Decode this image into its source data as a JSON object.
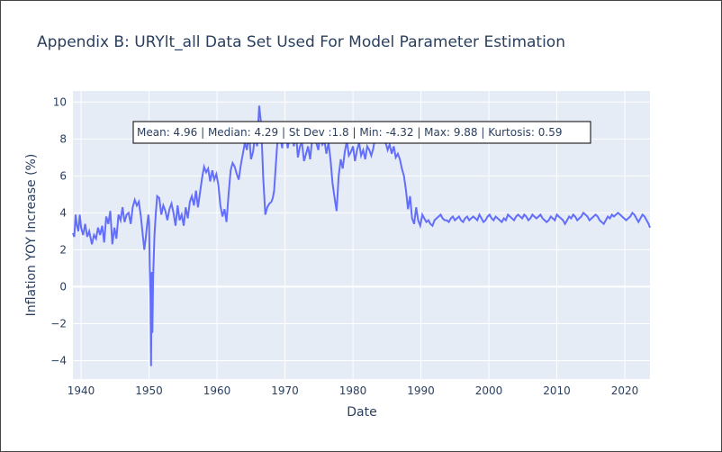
{
  "chart_data": {
    "type": "line",
    "title": "Appendix B: URYlt_all Data Set Used For Model Parameter Estimation",
    "xlabel": "Date",
    "ylabel": "Inflation YOY Increase (%)",
    "xlim": [
      1938.8,
      2023.7
    ],
    "ylim": [
      -5,
      10.6
    ],
    "x_ticks": [
      1940,
      1950,
      1960,
      1970,
      1980,
      1990,
      2000,
      2010,
      2020
    ],
    "y_ticks": [
      -4,
      -2,
      0,
      2,
      4,
      6,
      8,
      10
    ],
    "grid": true,
    "line_color": "#636efa",
    "plot_bgcolor": "#e5ecf6",
    "annotation": "Mean: 4.96 | Median: 4.29 | St Dev :1.8 | Min: -4.32 | Max: 9.88 | Kurtosis: 0.59",
    "series": [
      {
        "x": [
          1938.8,
          1939.0,
          1939.2,
          1939.4,
          1939.6,
          1939.8,
          1940.0,
          1940.3,
          1940.6,
          1940.9,
          1941.2,
          1941.6,
          1941.9,
          1942.2,
          1942.5,
          1942.8,
          1943.1,
          1943.4,
          1943.7,
          1944.0,
          1944.3,
          1944.6,
          1944.9,
          1945.2,
          1945.5,
          1945.8,
          1946.1,
          1946.4,
          1946.7,
          1947.0,
          1947.3,
          1947.6,
          1947.9,
          1948.2,
          1948.5,
          1948.8,
          1949.1,
          1949.3,
          1949.5,
          1949.7,
          1949.9,
          1950.0,
          1950.1,
          1950.2,
          1950.3,
          1950.4,
          1950.5,
          1950.6,
          1950.8,
          1951.0,
          1951.2,
          1951.5,
          1951.8,
          1952.1,
          1952.4,
          1952.7,
          1953.0,
          1953.3,
          1953.6,
          1953.9,
          1954.2,
          1954.5,
          1954.8,
          1955.1,
          1955.4,
          1955.7,
          1956.0,
          1956.3,
          1956.6,
          1956.9,
          1957.2,
          1957.5,
          1957.8,
          1958.1,
          1958.4,
          1958.7,
          1959.0,
          1959.3,
          1959.6,
          1959.9,
          1960.2,
          1960.5,
          1960.8,
          1961.1,
          1961.4,
          1961.7,
          1962.0,
          1962.3,
          1962.6,
          1962.9,
          1963.2,
          1963.5,
          1963.8,
          1964.1,
          1964.4,
          1964.7,
          1965.0,
          1965.3,
          1965.6,
          1965.9,
          1966.2,
          1966.5,
          1966.8,
          1967.1,
          1967.4,
          1967.7,
          1968.0,
          1968.2,
          1968.4,
          1968.6,
          1968.8,
          1969.0,
          1969.2,
          1969.4,
          1969.6,
          1969.8,
          1970.1,
          1970.4,
          1970.7,
          1971.0,
          1971.3,
          1971.6,
          1971.9,
          1972.2,
          1972.5,
          1972.8,
          1973.1,
          1973.4,
          1973.7,
          1974.0,
          1974.3,
          1974.6,
          1974.9,
          1975.2,
          1975.5,
          1975.8,
          1976.1,
          1976.4,
          1976.7,
          1977.0,
          1977.3,
          1977.6,
          1977.9,
          1978.2,
          1978.5,
          1978.8,
          1979.1,
          1979.4,
          1979.7,
          1980.0,
          1980.3,
          1980.6,
          1980.9,
          1981.2,
          1981.5,
          1981.8,
          1982.1,
          1982.4,
          1982.7,
          1983.0,
          1983.3,
          1983.6,
          1983.9,
          1984.2,
          1984.5,
          1984.8,
          1985.1,
          1985.4,
          1985.7,
          1986.0,
          1986.3,
          1986.6,
          1986.9,
          1987.2,
          1987.5,
          1987.8,
          1988.1,
          1988.4,
          1988.7,
          1989.0,
          1989.3,
          1989.6,
          1989.9,
          1990.2,
          1990.5,
          1990.8,
          1991.1,
          1991.4,
          1991.7,
          1992.0,
          1992.3,
          1992.6,
          1992.9,
          1993.2,
          1993.5,
          1993.8,
          1994.1,
          1994.4,
          1994.7,
          1995.0,
          1995.3,
          1995.6,
          1995.9,
          1996.2,
          1996.5,
          1996.8,
          1997.1,
          1997.4,
          1997.7,
          1998.0,
          1998.3,
          1998.6,
          1998.9,
          1999.2,
          1999.5,
          1999.8,
          2000.1,
          2000.4,
          2000.7,
          2001.0,
          2001.3,
          2001.6,
          2001.9,
          2002.2,
          2002.5,
          2002.8,
          2003.1,
          2003.4,
          2003.7,
          2004.0,
          2004.3,
          2004.6,
          2004.9,
          2005.2,
          2005.5,
          2005.8,
          2006.1,
          2006.4,
          2006.7,
          2007.0,
          2007.3,
          2007.6,
          2007.9,
          2008.2,
          2008.5,
          2008.8,
          2009.1,
          2009.4,
          2009.7,
          2010.0,
          2010.3,
          2010.6,
          2010.9,
          2011.2,
          2011.5,
          2011.8,
          2012.1,
          2012.4,
          2012.7,
          2013.0,
          2013.3,
          2013.6,
          2013.9,
          2014.2,
          2014.5,
          2014.8,
          2015.1,
          2015.4,
          2015.7,
          2016.0,
          2016.3,
          2016.6,
          2016.9,
          2017.2,
          2017.5,
          2017.8,
          2018.1,
          2018.4,
          2018.7,
          2019.0,
          2019.3,
          2019.6,
          2019.9,
          2020.2,
          2020.5,
          2020.8,
          2021.1,
          2021.4,
          2021.7,
          2022.0,
          2022.3,
          2022.6,
          2022.9,
          2023.2,
          2023.5,
          2023.7
        ],
        "y": [
          2.9,
          2.7,
          3.9,
          3.3,
          3.0,
          3.9,
          3.2,
          2.8,
          3.4,
          2.7,
          3.0,
          2.3,
          2.8,
          2.6,
          3.2,
          2.8,
          3.3,
          2.4,
          3.8,
          3.4,
          4.1,
          2.3,
          3.2,
          2.6,
          3.9,
          3.6,
          4.3,
          3.5,
          3.9,
          4.0,
          3.4,
          4.3,
          4.7,
          4.4,
          4.6,
          3.8,
          2.7,
          2.0,
          2.6,
          3.3,
          3.9,
          3.5,
          1.2,
          -0.5,
          -4.3,
          0.8,
          -2.5,
          0.5,
          2.8,
          4.0,
          4.9,
          4.8,
          3.9,
          4.4,
          4.1,
          3.6,
          4.2,
          4.5,
          4.0,
          3.3,
          4.4,
          3.6,
          3.9,
          3.3,
          4.3,
          3.7,
          4.6,
          4.9,
          4.4,
          5.2,
          4.3,
          5.1,
          5.9,
          6.5,
          6.2,
          6.4,
          5.7,
          6.3,
          5.8,
          6.1,
          5.5,
          4.4,
          3.8,
          4.2,
          3.5,
          5.0,
          6.3,
          6.7,
          6.5,
          6.1,
          5.8,
          6.6,
          7.2,
          7.8,
          7.4,
          8.4,
          6.9,
          7.3,
          8.2,
          7.6,
          9.8,
          8.8,
          5.9,
          3.9,
          4.3,
          4.5,
          4.6,
          4.8,
          5.2,
          6.3,
          7.4,
          8.4,
          8.3,
          7.9,
          7.5,
          8.9,
          8.4,
          7.5,
          8.2,
          8.7,
          7.6,
          8.4,
          7.0,
          7.6,
          7.8,
          6.8,
          7.2,
          7.6,
          6.9,
          8.0,
          8.5,
          7.8,
          7.4,
          8.2,
          7.7,
          7.9,
          7.2,
          7.8,
          6.9,
          5.6,
          4.8,
          4.1,
          6.0,
          6.9,
          6.4,
          7.3,
          7.9,
          7.1,
          7.3,
          7.6,
          6.8,
          7.4,
          7.8,
          7.1,
          7.4,
          6.9,
          7.6,
          7.4,
          7.1,
          7.5,
          8.2,
          7.9,
          8.0,
          7.9,
          8.1,
          7.8,
          7.4,
          7.7,
          7.2,
          7.6,
          7.0,
          7.2,
          6.9,
          6.4,
          6.0,
          5.2,
          4.2,
          4.9,
          3.7,
          3.4,
          4.3,
          3.6,
          3.3,
          3.9,
          3.7,
          3.5,
          3.6,
          3.4,
          3.3,
          3.6,
          3.7,
          3.8,
          3.9,
          3.7,
          3.6,
          3.6,
          3.5,
          3.7,
          3.8,
          3.6,
          3.7,
          3.8,
          3.6,
          3.5,
          3.7,
          3.8,
          3.6,
          3.7,
          3.8,
          3.7,
          3.6,
          3.9,
          3.7,
          3.5,
          3.6,
          3.8,
          3.9,
          3.7,
          3.6,
          3.8,
          3.7,
          3.6,
          3.5,
          3.7,
          3.6,
          3.9,
          3.8,
          3.7,
          3.6,
          3.8,
          3.9,
          3.8,
          3.7,
          3.9,
          3.8,
          3.6,
          3.7,
          3.9,
          3.8,
          3.7,
          3.8,
          3.9,
          3.7,
          3.6,
          3.5,
          3.6,
          3.8,
          3.7,
          3.6,
          3.9,
          3.8,
          3.7,
          3.6,
          3.4,
          3.6,
          3.8,
          3.7,
          3.9,
          3.8,
          3.6,
          3.7,
          3.8,
          4.0,
          3.9,
          3.8,
          3.6,
          3.7,
          3.8,
          3.9,
          3.8,
          3.6,
          3.5,
          3.4,
          3.6,
          3.8,
          3.7,
          3.9,
          3.8,
          3.9,
          4.0,
          3.9,
          3.8,
          3.7,
          3.6,
          3.7,
          3.8,
          4.0,
          3.9,
          3.7,
          3.5,
          3.7,
          3.9,
          3.8,
          3.6,
          3.4,
          3.2
        ]
      }
    ]
  }
}
